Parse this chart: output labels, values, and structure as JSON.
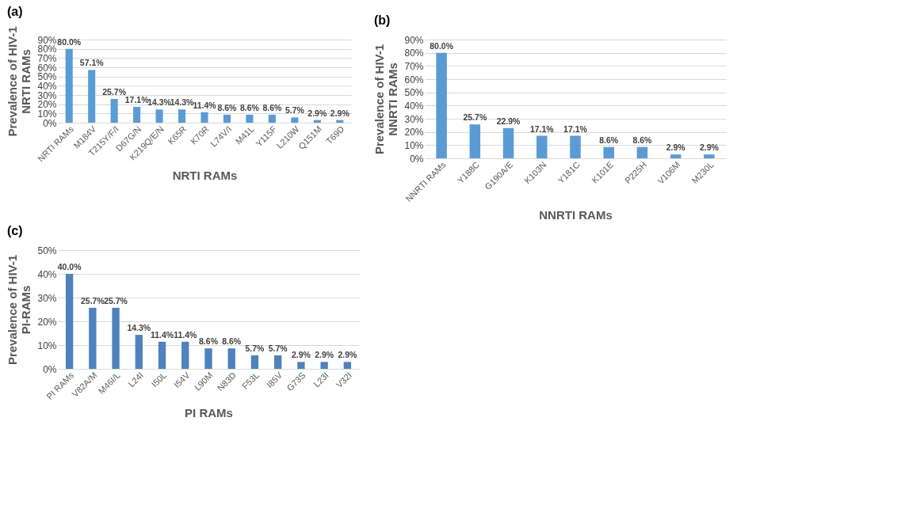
{
  "chart_data": [
    {
      "type": "bar",
      "title": "(a)",
      "xlabel": "NRTI RAMs",
      "ylabel": "Prevalence of HIV-1\nNRTI RAMs",
      "categories": [
        "NRTI RAMs",
        "M184V",
        "T215Y/F/I",
        "D67G/N",
        "K219Q/E/N",
        "K65R",
        "K70R",
        "L74V/I",
        "M41L",
        "Y115F",
        "L210W",
        "Q151M",
        "T69D"
      ],
      "values": [
        80.0,
        57.1,
        25.7,
        17.1,
        14.3,
        14.3,
        11.4,
        8.6,
        8.6,
        8.6,
        5.7,
        2.9,
        2.9
      ],
      "value_labels": [
        "80.0%",
        "57.1%",
        "25.7%",
        "17.1%",
        "14.3%",
        "14.3%",
        "11.4%",
        "8.6%",
        "8.6%",
        "8.6%",
        "5.7%",
        "2.9%",
        "2.9%"
      ],
      "color": "#5b9bd5",
      "ylim": [
        0,
        90
      ],
      "yticks": [
        {
          "value": 0,
          "label": "0%"
        },
        {
          "value": 10,
          "label": "10%"
        },
        {
          "value": 20,
          "label": "20%"
        },
        {
          "value": 30,
          "label": "30%"
        },
        {
          "value": 40,
          "label": "40%"
        },
        {
          "value": 50,
          "label": "50%"
        },
        {
          "value": 60,
          "label": "60%"
        },
        {
          "value": 70,
          "label": "70%"
        },
        {
          "value": 80,
          "label": "80%"
        },
        {
          "value": 90,
          "label": "90%"
        }
      ],
      "grid": "y"
    },
    {
      "type": "bar",
      "title": "(b)",
      "xlabel": "NNRTI RAMs",
      "ylabel": "Prevalence of HIV-1\nNNRTI RAMs",
      "categories": [
        "NNRTI RAMs",
        "Y188C",
        "G190A/E",
        "K103N",
        "Y181C",
        "K101E",
        "P225H",
        "V106M",
        "M230L"
      ],
      "values": [
        80.0,
        25.7,
        22.9,
        17.1,
        17.1,
        8.6,
        8.6,
        2.9,
        2.9
      ],
      "value_labels": [
        "80.0%",
        "25.7%",
        "22.9%",
        "17.1%",
        "17.1%",
        "8.6%",
        "8.6%",
        "2.9%",
        "2.9%"
      ],
      "color": "#5b9bd5",
      "ylim": [
        0,
        90
      ],
      "yticks": [
        {
          "value": 0,
          "label": "0%"
        },
        {
          "value": 10,
          "label": "10%"
        },
        {
          "value": 20,
          "label": "20%"
        },
        {
          "value": 30,
          "label": "30%"
        },
        {
          "value": 40,
          "label": "40%"
        },
        {
          "value": 50,
          "label": "50%"
        },
        {
          "value": 60,
          "label": "60%"
        },
        {
          "value": 70,
          "label": "70%"
        },
        {
          "value": 80,
          "label": "80%"
        },
        {
          "value": 90,
          "label": "90%"
        }
      ],
      "grid": "y"
    },
    {
      "type": "bar",
      "title": "(c)",
      "xlabel": "PI RAMs",
      "ylabel": "Prevalence of HIV-1\nPI-RAMs",
      "categories": [
        "PI RAMs",
        "V82A/M",
        "M46I/L",
        "L24I",
        "I50L",
        "I54V",
        "L90M",
        "N83D",
        "F53L",
        "I85V",
        "G73S",
        "L23I",
        "V32I"
      ],
      "values": [
        40.0,
        25.7,
        25.7,
        14.3,
        11.4,
        11.4,
        8.6,
        8.6,
        5.7,
        5.7,
        2.9,
        2.9,
        2.9
      ],
      "value_labels": [
        "40.0%",
        "25.7%",
        "25.7%",
        "14.3%",
        "11.4%",
        "11.4%",
        "8.6%",
        "8.6%",
        "5.7%",
        "5.7%",
        "2.9%",
        "2.9%",
        "2.9%"
      ],
      "color": "#4f81bd",
      "ylim": [
        0,
        50
      ],
      "yticks": [
        {
          "value": 0,
          "label": "0%"
        },
        {
          "value": 10,
          "label": "10%"
        },
        {
          "value": 20,
          "label": "20%"
        },
        {
          "value": 30,
          "label": "30%"
        },
        {
          "value": 40,
          "label": "40%"
        },
        {
          "value": 50,
          "label": "50%"
        }
      ],
      "grid": "y"
    }
  ]
}
